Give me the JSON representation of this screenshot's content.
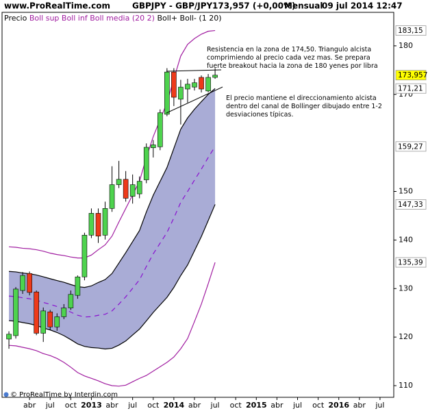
{
  "header": {
    "site": "www.ProRealTime.com",
    "symbol": "GBPJPY - GBP/JPY",
    "price": "173,957 (+0,00%)",
    "period": "Mensual",
    "date": "09 jul 2014 12:47"
  },
  "footer": "© ProRealTime by Interdin.com",
  "chart_data": {
    "type": "candlestick",
    "x": [
      "2012-01",
      "2012-02",
      "2012-03",
      "2012-04",
      "2012-05",
      "2012-06",
      "2012-07",
      "2012-08",
      "2012-09",
      "2012-10",
      "2012-11",
      "2012-12",
      "2013-01",
      "2013-02",
      "2013-03",
      "2013-04",
      "2013-05",
      "2013-06",
      "2013-07",
      "2013-08",
      "2013-09",
      "2013-10",
      "2013-11",
      "2013-12",
      "2014-01",
      "2014-02",
      "2014-03",
      "2014-04",
      "2014-05",
      "2014-06",
      "2014-07"
    ],
    "candles": {
      "name": "Precio",
      "up_color": "#4ed34e",
      "down_color": "#ee3a1a",
      "open": [
        119.6,
        120.3,
        129.6,
        133.1,
        129.3,
        120.8,
        125.2,
        122.1,
        124.2,
        126.0,
        128.6,
        132.4,
        141.0,
        145.5,
        141.0,
        146.5,
        151.4,
        152.5,
        149.0,
        149.5,
        152.4,
        159.0,
        159.2,
        165.9,
        174.6,
        169.0,
        171.1,
        171.5,
        173.5,
        170.7,
        173.5
      ],
      "high": [
        121.2,
        130.3,
        133.4,
        133.5,
        129.6,
        126.1,
        125.6,
        124.9,
        126.8,
        129.6,
        132.7,
        141.5,
        146.5,
        146.5,
        147.9,
        155.2,
        156.3,
        154.2,
        153.5,
        153.1,
        159.9,
        160.6,
        166.9,
        175.4,
        175.4,
        173.0,
        173.2,
        173.2,
        173.9,
        174.2,
        175.4
      ],
      "low": [
        117.6,
        119.7,
        128.9,
        128.6,
        120.4,
        119.0,
        121.4,
        121.3,
        123.7,
        125.6,
        127.9,
        131.7,
        140.4,
        139.4,
        140.1,
        145.8,
        150.7,
        147.9,
        147.5,
        148.6,
        151.7,
        157.0,
        158.5,
        165.5,
        167.6,
        163.8,
        168.3,
        170.8,
        170.4,
        170.4,
        173.2
      ],
      "close": [
        120.6,
        129.9,
        132.7,
        129.2,
        120.8,
        125.4,
        122.1,
        124.2,
        126.0,
        128.8,
        132.4,
        141.0,
        145.5,
        140.8,
        146.5,
        151.4,
        152.5,
        148.6,
        151.4,
        152.1,
        159.1,
        159.6,
        166.2,
        174.6,
        169.4,
        171.5,
        172.1,
        172.4,
        171.1,
        173.5,
        173.957
      ]
    },
    "series": [
      {
        "name": "Boll sup",
        "color": "#a01ca0",
        "values": [
          138.6,
          138.5,
          138.3,
          138.2,
          138.0,
          137.7,
          137.3,
          137.0,
          136.8,
          136.5,
          136.3,
          136.3,
          136.9,
          138.0,
          139.0,
          140.8,
          143.7,
          146.5,
          149.3,
          152.1,
          157.0,
          161.3,
          164.8,
          168.3,
          173.2,
          177.9,
          180.3,
          181.5,
          182.4,
          183.0,
          183.15
        ]
      },
      {
        "name": "Boll inf",
        "color": "#a01ca0",
        "values": [
          118.3,
          118.2,
          117.9,
          117.6,
          117.2,
          116.6,
          116.2,
          115.6,
          114.8,
          113.8,
          112.7,
          112.0,
          111.5,
          111.0,
          110.4,
          110.0,
          109.9,
          110.1,
          110.8,
          111.5,
          112.1,
          113.0,
          113.9,
          114.8,
          115.9,
          117.6,
          119.7,
          123.2,
          126.8,
          131.0,
          135.39
        ]
      },
      {
        "name": "Boll media",
        "color": "#8a10d0",
        "dashed": true,
        "values": [
          128.45,
          128.35,
          128.1,
          127.9,
          127.6,
          127.15,
          126.75,
          126.3,
          125.8,
          125.15,
          124.5,
          124.15,
          124.2,
          124.5,
          124.7,
          125.4,
          126.8,
          128.3,
          130.05,
          131.8,
          134.55,
          137.15,
          139.35,
          141.55,
          144.55,
          147.75,
          150.0,
          152.35,
          154.6,
          157.0,
          159.27
        ]
      },
      {
        "name": "Boll+",
        "color": "#000000",
        "values": [
          133.53,
          133.43,
          133.2,
          133.05,
          132.8,
          132.43,
          132.03,
          131.65,
          131.3,
          130.83,
          130.4,
          130.23,
          130.55,
          131.25,
          131.85,
          133.1,
          135.25,
          137.4,
          139.68,
          141.95,
          145.78,
          149.23,
          152.08,
          154.93,
          158.88,
          162.83,
          165.15,
          166.93,
          168.5,
          170.0,
          171.21
        ]
      },
      {
        "name": "Boll-",
        "color": "#000000",
        "values": [
          123.38,
          123.28,
          123.0,
          122.75,
          122.4,
          121.88,
          121.48,
          120.95,
          120.3,
          119.48,
          118.6,
          118.08,
          117.85,
          117.75,
          117.55,
          117.7,
          118.35,
          119.2,
          120.43,
          121.65,
          123.33,
          125.08,
          126.63,
          128.18,
          130.23,
          132.68,
          134.85,
          137.78,
          140.7,
          144.0,
          147.33
        ]
      }
    ],
    "legend_params": [
      "(20 2)",
      "(1 20)"
    ],
    "band_fill": "#a9acd6",
    "xlim": [
      "2011-12",
      "2016-09"
    ],
    "xticks": [
      {
        "value": "2012-04",
        "label": "abr"
      },
      {
        "value": "2012-07",
        "label": "jul"
      },
      {
        "value": "2012-10",
        "label": "oct"
      },
      {
        "value": "2013-01",
        "label": "2013"
      },
      {
        "value": "2013-04",
        "label": "abr"
      },
      {
        "value": "2013-07",
        "label": "jul"
      },
      {
        "value": "2013-10",
        "label": "oct"
      },
      {
        "value": "2014-01",
        "label": "2014"
      },
      {
        "value": "2014-04",
        "label": "abr"
      },
      {
        "value": "2014-07",
        "label": "jul"
      },
      {
        "value": "2014-10",
        "label": "oct"
      },
      {
        "value": "2015-01",
        "label": "2015"
      },
      {
        "value": "2015-04",
        "label": "abr"
      },
      {
        "value": "2015-07",
        "label": "jul"
      },
      {
        "value": "2015-10",
        "label": "oct"
      },
      {
        "value": "2016-01",
        "label": "2016"
      },
      {
        "value": "2016-04",
        "label": "abr"
      },
      {
        "value": "2016-07",
        "label": "jul"
      }
    ],
    "ylim": [
      107.6,
      186.9
    ],
    "yticks": [
      110,
      120,
      130,
      140,
      150,
      170,
      180
    ],
    "price_labels": [
      {
        "value": 183.15,
        "label": "183,15",
        "color": "#a01ca0"
      },
      {
        "value": 173.957,
        "label": "173,957",
        "color": "#000000",
        "background": "#ffff00"
      },
      {
        "value": 171.21,
        "label": "171,21",
        "color": "#000000"
      },
      {
        "value": 159.27,
        "label": "159,27",
        "color": "#a01ca0"
      },
      {
        "value": 147.33,
        "label": "147,33",
        "color": "#000000"
      },
      {
        "value": 135.39,
        "label": "135,39",
        "color": "#a01ca0"
      }
    ],
    "annotations": [
      {
        "lines": [
          "Resistencia en la zona de 174,50. Triangulo alcista",
          "comprimiendo al precio cada vez mas. Se prepara",
          "fuerte breakout hacia la zona de 180 yenes por libra"
        ]
      },
      {
        "lines": [
          "El precio mantiene el direccionamiento alcista",
          "dentro del canal de Bollinger dibujado entre 1-2",
          "desviaciones típicas."
        ]
      }
    ]
  }
}
